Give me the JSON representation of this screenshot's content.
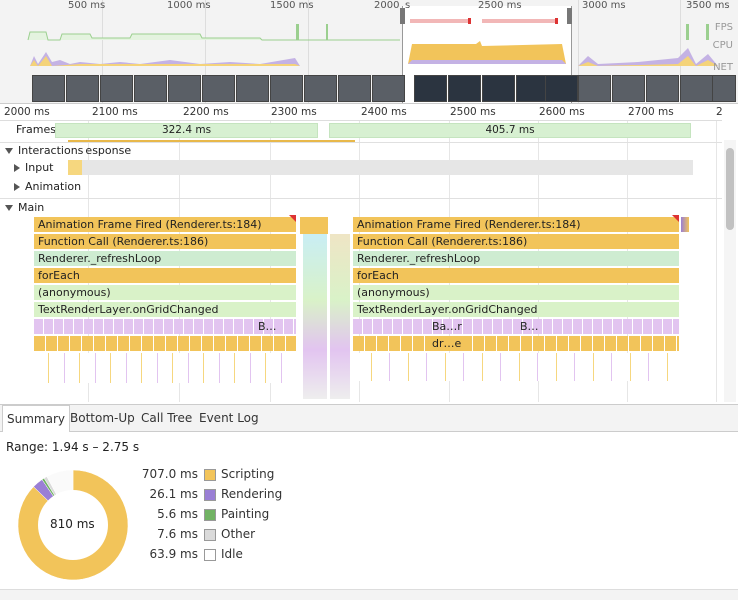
{
  "overview": {
    "ticks": [
      "500 ms",
      "1000 ms",
      "1500 ms",
      "2000",
      "s",
      "2500 ms",
      "3000 ms",
      "3500 ms"
    ],
    "labels": {
      "fps": "FPS",
      "cpu": "CPU",
      "net": "NET"
    }
  },
  "ruler": {
    "ticks": [
      "2000 ms",
      "2100 ms",
      "2200 ms",
      "2300 ms",
      "2400 ms",
      "2500 ms",
      "2600 ms",
      "2700 ms",
      "2"
    ]
  },
  "tracks": {
    "frames": {
      "label": "Frames",
      "bars": [
        "322.4 ms",
        "405.7 ms"
      ]
    },
    "interactions": {
      "label": "Interactions",
      "overlap_label": "esponse",
      "input": "Input",
      "animation": "Animation"
    },
    "main": {
      "label": "Main"
    }
  },
  "flame": {
    "left": [
      "Animation Frame Fired (Renderer.ts:184)",
      "Function Call (Renderer.ts:186)",
      "Renderer._refreshLoop",
      "forEach",
      "(anonymous)",
      "TextRenderLayer.onGridChanged",
      "B…"
    ],
    "right": [
      "Animation Frame Fired (Renderer.ts:184)",
      "Function Call (Renderer.ts:186)",
      "Renderer._refreshLoop",
      "forEach",
      "(anonymous)",
      "TextRenderLayer.onGridChanged",
      "Ba…r",
      "B…",
      "dr…e"
    ]
  },
  "tabs": [
    "Summary",
    "Bottom-Up",
    "Call Tree",
    "Event Log"
  ],
  "summary": {
    "range": "Range: 1.94 s – 2.75 s",
    "total": "810 ms",
    "items": [
      {
        "value": "707.0 ms",
        "name": "Scripting",
        "color": "#f2c45a"
      },
      {
        "value": "26.1 ms",
        "name": "Rendering",
        "color": "#9a7fd5"
      },
      {
        "value": "5.6 ms",
        "name": "Painting",
        "color": "#71b363"
      },
      {
        "value": "7.6 ms",
        "name": "Other",
        "color": "#dadada"
      },
      {
        "value": "63.9 ms",
        "name": "Idle",
        "color": "#ffffff"
      }
    ]
  }
}
